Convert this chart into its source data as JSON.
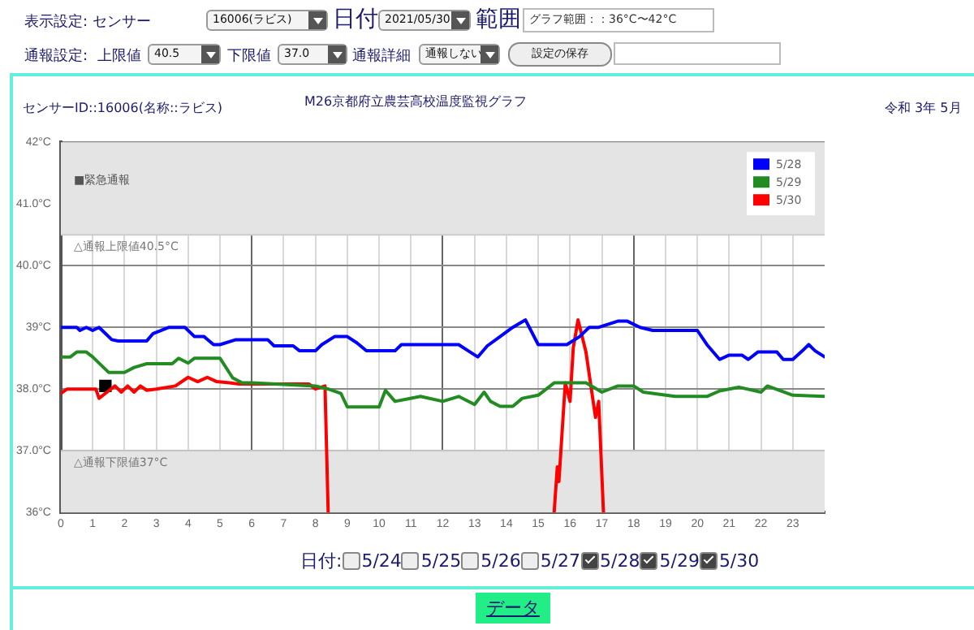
{
  "chart_data": {
    "type": "line",
    "title": "M26京都府立農芸高校温度監視グラフ",
    "annotations": [
      "表示設定: センサー",
      "16006(ラビス)",
      "日付",
      "2021/05/30",
      "範囲",
      "グラフ範囲：：36°C〜42°C",
      "通報設定:",
      "上限値",
      "40.5",
      "下限値",
      "37.0",
      "通報詳細",
      "通報しない",
      "設定の保存",
      "センサーID::16006(名称::ラビス)",
      "令和 3年 5月",
      "日付:",
      "5/24",
      "5/25",
      "5/26",
      "5/27",
      "5/28",
      "5/29",
      "5/30",
      "データ"
    ],
    "xlim": [
      0,
      24
    ],
    "xticks": [
      0,
      1,
      2,
      3,
      4,
      5,
      6,
      7,
      8,
      9,
      10,
      11,
      12,
      13,
      14,
      15,
      16,
      17,
      18,
      19,
      20,
      21,
      22,
      23
    ],
    "ylim": [
      36,
      42
    ],
    "yticks": [
      {
        "value": 36,
        "label": "36°C"
      },
      {
        "value": 37,
        "label": "37.0°C"
      },
      {
        "value": 38,
        "label": "38.0°C"
      },
      {
        "value": 39,
        "label": "39°C"
      },
      {
        "value": 40,
        "label": "40.0°C"
      },
      {
        "value": 41,
        "label": "41.0°C"
      },
      {
        "value": 42,
        "label": "42°C"
      }
    ],
    "grid": true,
    "legend": "top right",
    "bands": [
      {
        "axis": "y",
        "from": 40.5,
        "to": 42,
        "label": "■緊急通報",
        "color": "#e4e4e4"
      },
      {
        "axis": "y",
        "from": 36,
        "to": 37,
        "color": "#e4e4e4"
      }
    ],
    "ref_lines": [
      {
        "axis": "y",
        "value": 40.5,
        "label": "△通報上限値40.5°C",
        "color": "#cccccc"
      },
      {
        "axis": "y",
        "value": 37,
        "label": "△通報下限値37°C",
        "color": "#cccccc"
      }
    ],
    "series": [
      {
        "name": "5/28",
        "color": "#0000ff",
        "x": [
          0,
          0.5,
          0.6,
          0.8,
          1.0,
          1.2,
          1.4,
          1.6,
          1.8,
          2.7,
          2.9,
          3.4,
          3.9,
          4.2,
          4.5,
          4.8,
          5.0,
          5.5,
          5.7,
          6.5,
          6.7,
          7.3,
          7.5,
          8.0,
          8.2,
          8.6,
          9.0,
          9.3,
          9.6,
          10.5,
          10.7,
          11.0,
          12.5,
          12.8,
          13.1,
          13.4,
          13.8,
          14.2,
          14.6,
          15.0,
          15.9,
          16.3,
          16.6,
          16.9,
          17.5,
          17.8,
          18.2,
          18.6,
          20.0,
          20.3,
          20.7,
          21.0,
          21.4,
          21.6,
          21.9,
          22.5,
          22.7,
          23.0,
          23.3,
          23.5,
          23.7,
          24.0
        ],
        "values": [
          39.0,
          39.0,
          38.95,
          39.0,
          38.95,
          39.0,
          38.9,
          38.8,
          38.78,
          38.78,
          38.9,
          39.0,
          39.0,
          38.85,
          38.85,
          38.72,
          38.72,
          38.8,
          38.8,
          38.8,
          38.7,
          38.7,
          38.62,
          38.62,
          38.72,
          38.85,
          38.85,
          38.75,
          38.62,
          38.62,
          38.72,
          38.72,
          38.72,
          38.62,
          38.52,
          38.7,
          38.85,
          39.0,
          39.12,
          38.72,
          38.72,
          38.85,
          39.0,
          39.0,
          39.1,
          39.1,
          39.0,
          38.95,
          38.95,
          38.72,
          38.48,
          38.55,
          38.55,
          38.48,
          38.6,
          38.6,
          38.48,
          38.48,
          38.62,
          38.72,
          38.62,
          38.52
        ]
      },
      {
        "name": "5/29",
        "color": "#228b22",
        "x": [
          0,
          0.3,
          0.5,
          0.8,
          1.0,
          1.5,
          2.0,
          2.3,
          2.7,
          3.5,
          3.7,
          4.0,
          4.2,
          5.0,
          5.4,
          5.7,
          6.0,
          8.0,
          8.4,
          8.8,
          9.0,
          10.0,
          10.2,
          10.5,
          11.3,
          12.0,
          12.5,
          13.0,
          13.3,
          13.5,
          13.8,
          14.2,
          14.5,
          15.0,
          15.5,
          16.5,
          17.0,
          17.5,
          18.0,
          18.3,
          19.3,
          20.3,
          20.7,
          21.3,
          22.0,
          22.2,
          23.0,
          24.0
        ],
        "values": [
          38.52,
          38.52,
          38.6,
          38.6,
          38.52,
          38.27,
          38.27,
          38.35,
          38.41,
          38.41,
          38.5,
          38.42,
          38.5,
          38.5,
          38.18,
          38.1,
          38.1,
          38.05,
          38.0,
          37.93,
          37.71,
          37.71,
          37.98,
          37.8,
          37.88,
          37.8,
          37.88,
          37.75,
          37.95,
          37.8,
          37.72,
          37.72,
          37.85,
          37.9,
          38.1,
          38.1,
          37.95,
          38.05,
          38.05,
          37.95,
          37.88,
          37.88,
          37.97,
          38.03,
          37.95,
          38.05,
          37.9,
          37.88
        ]
      },
      {
        "name": "5/30",
        "color": "#ff0000",
        "x": [
          0,
          0.2,
          1.1,
          1.2,
          1.5,
          1.7,
          1.9,
          2.1,
          2.3,
          2.5,
          2.7,
          3.0,
          3.6,
          4.0,
          4.3,
          4.6,
          4.9,
          5.3,
          5.6,
          7.8,
          8.0,
          8.3,
          8.4,
          8.45,
          15.45,
          15.5,
          15.6,
          15.65,
          15.85,
          16.0,
          16.1,
          16.25,
          16.5,
          16.8,
          16.9,
          17.05
        ],
        "values": [
          37.93,
          38.0,
          38.0,
          37.85,
          37.97,
          38.05,
          37.95,
          38.05,
          37.95,
          38.05,
          37.98,
          38.0,
          38.05,
          38.19,
          38.12,
          38.19,
          38.12,
          38.1,
          38.08,
          38.08,
          38.0,
          38.05,
          36.0,
          null,
          null,
          36.0,
          36.74,
          36.5,
          38.1,
          37.8,
          38.66,
          39.12,
          38.6,
          37.54,
          37.8,
          36.0
        ]
      },
      {
        "type": "scatter",
        "color": "#000000",
        "marker": "square",
        "x": [
          1.4
        ],
        "values": [
          38.05
        ]
      }
    ]
  }
}
